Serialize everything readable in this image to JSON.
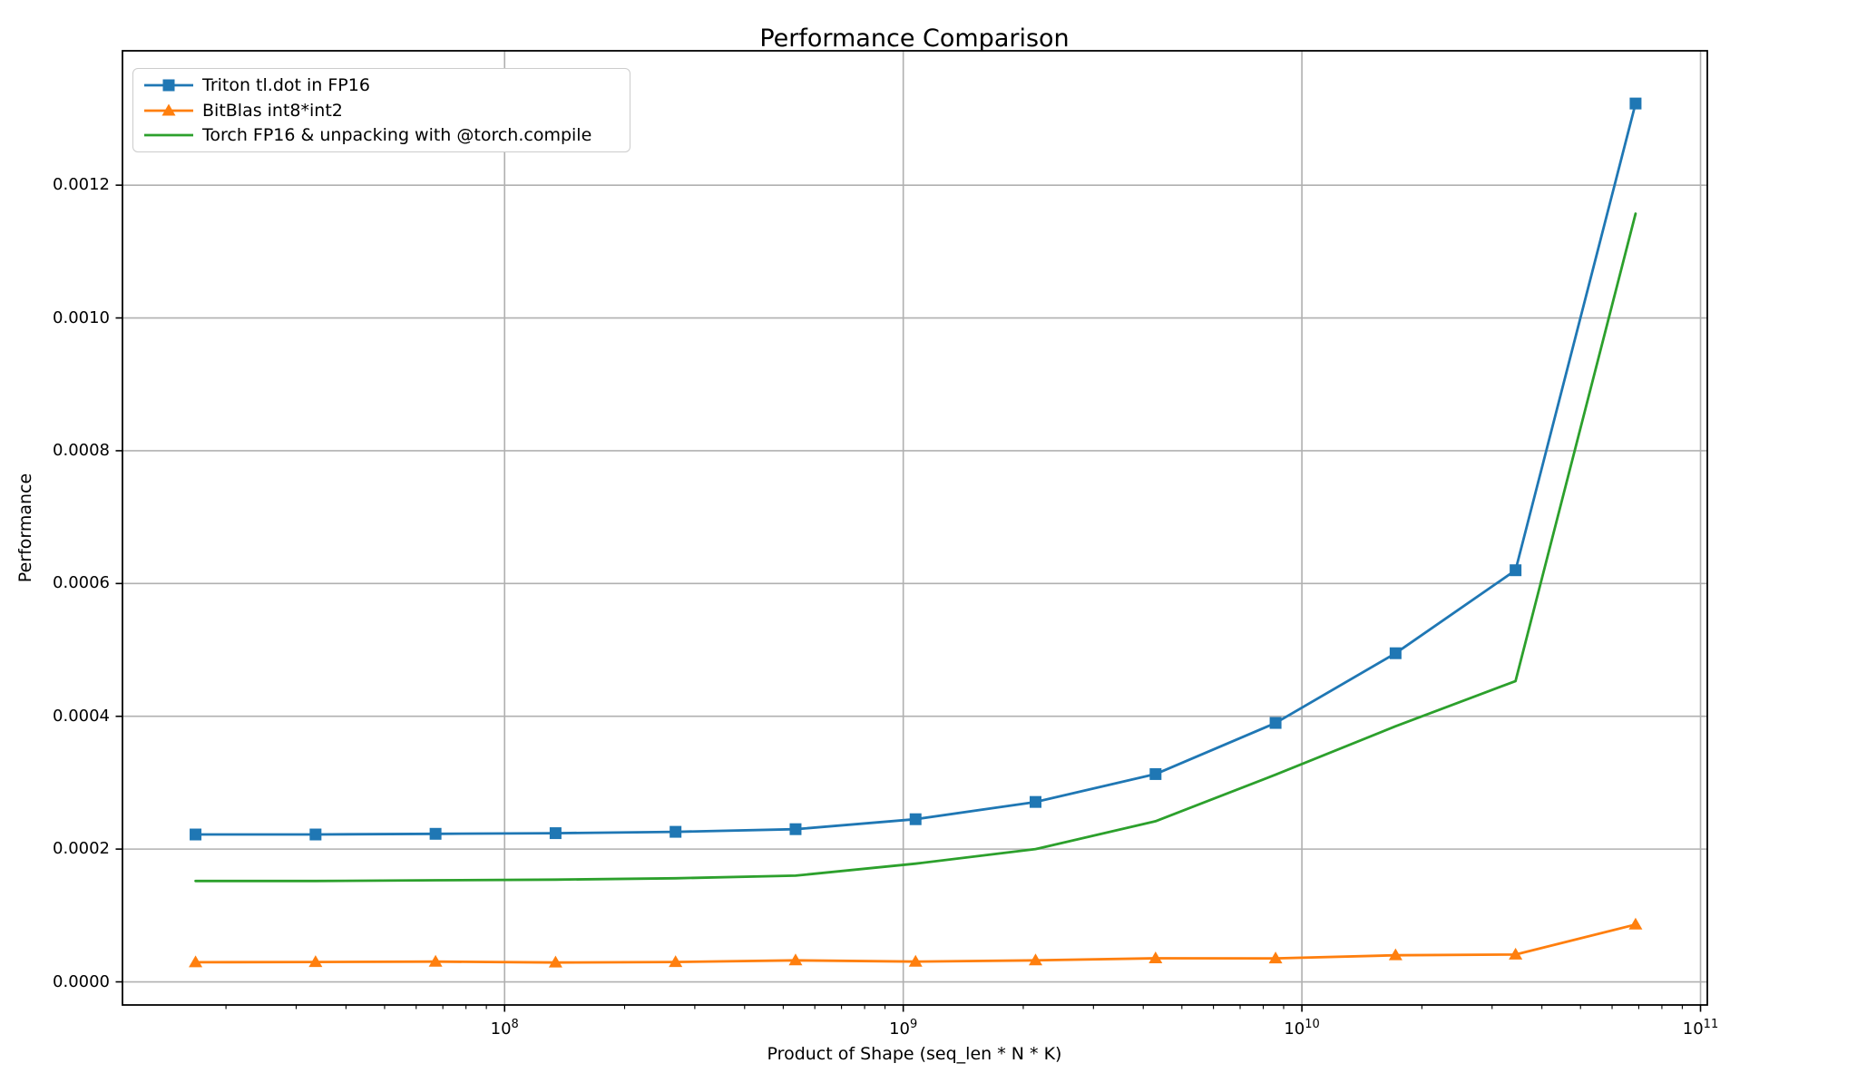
{
  "chart_data": {
    "type": "line",
    "title": "Performance Comparison",
    "xlabel": "Product of Shape (seq_len * N * K)",
    "ylabel": "Performance",
    "x_scale": "log",
    "grid": true,
    "legend_position": "upper-left",
    "background_color": "#ffffff",
    "grid_color": "#b0b0b0",
    "spine_color": "#000000",
    "xlim": [
      11000000,
      104000000000
    ],
    "ylim": [
      -3.48e-05,
      0.0014024
    ],
    "x": [
      16777216,
      33554432,
      67108864,
      134217728,
      268435456,
      536870912,
      1073741824,
      2147483648,
      4294967296,
      8589934592,
      17179869184,
      34359738368,
      68719476736
    ],
    "x_ticks": [
      {
        "mantissa": "10",
        "exponent": "8",
        "value": 100000000.0
      },
      {
        "mantissa": "10",
        "exponent": "9",
        "value": 1000000000.0
      },
      {
        "mantissa": "10",
        "exponent": "10",
        "value": 10000000000.0
      },
      {
        "mantissa": "10",
        "exponent": "11",
        "value": 100000000000.0
      }
    ],
    "y_ticks": [
      {
        "label": "0.0000",
        "value": 0.0
      },
      {
        "label": "0.0002",
        "value": 0.0002
      },
      {
        "label": "0.0004",
        "value": 0.0004
      },
      {
        "label": "0.0006",
        "value": 0.0006
      },
      {
        "label": "0.0008",
        "value": 0.0008
      },
      {
        "label": "0.0010",
        "value": 0.001
      },
      {
        "label": "0.0012",
        "value": 0.0012
      }
    ],
    "series": [
      {
        "name": "Triton tl.dot in FP16",
        "color": "#1f77b4",
        "marker": "square",
        "values": [
          0.000222,
          0.000222,
          0.000223,
          0.000224,
          0.000226,
          0.00023,
          0.000245,
          0.000271,
          0.000313,
          0.00039,
          0.000495,
          0.00062,
          0.001323
        ]
      },
      {
        "name": "BitBlas int8*int2",
        "color": "#ff7f0e",
        "marker": "triangle",
        "values": [
          2.96e-05,
          3e-05,
          3.05e-05,
          2.92e-05,
          3e-05,
          3.24e-05,
          3.05e-05,
          3.24e-05,
          3.55e-05,
          3.54e-05,
          4.01e-05,
          4.12e-05,
          8.64e-05
        ]
      },
      {
        "name": "Torch FP16 & unpacking with @torch.compile",
        "color": "#2ca02c",
        "marker": "none",
        "values": [
          0.000152,
          0.000152,
          0.000153,
          0.000154,
          0.000156,
          0.00016,
          0.000178,
          0.0002,
          0.000242,
          0.000312,
          0.000385,
          0.000453,
          0.001157
        ]
      }
    ]
  }
}
